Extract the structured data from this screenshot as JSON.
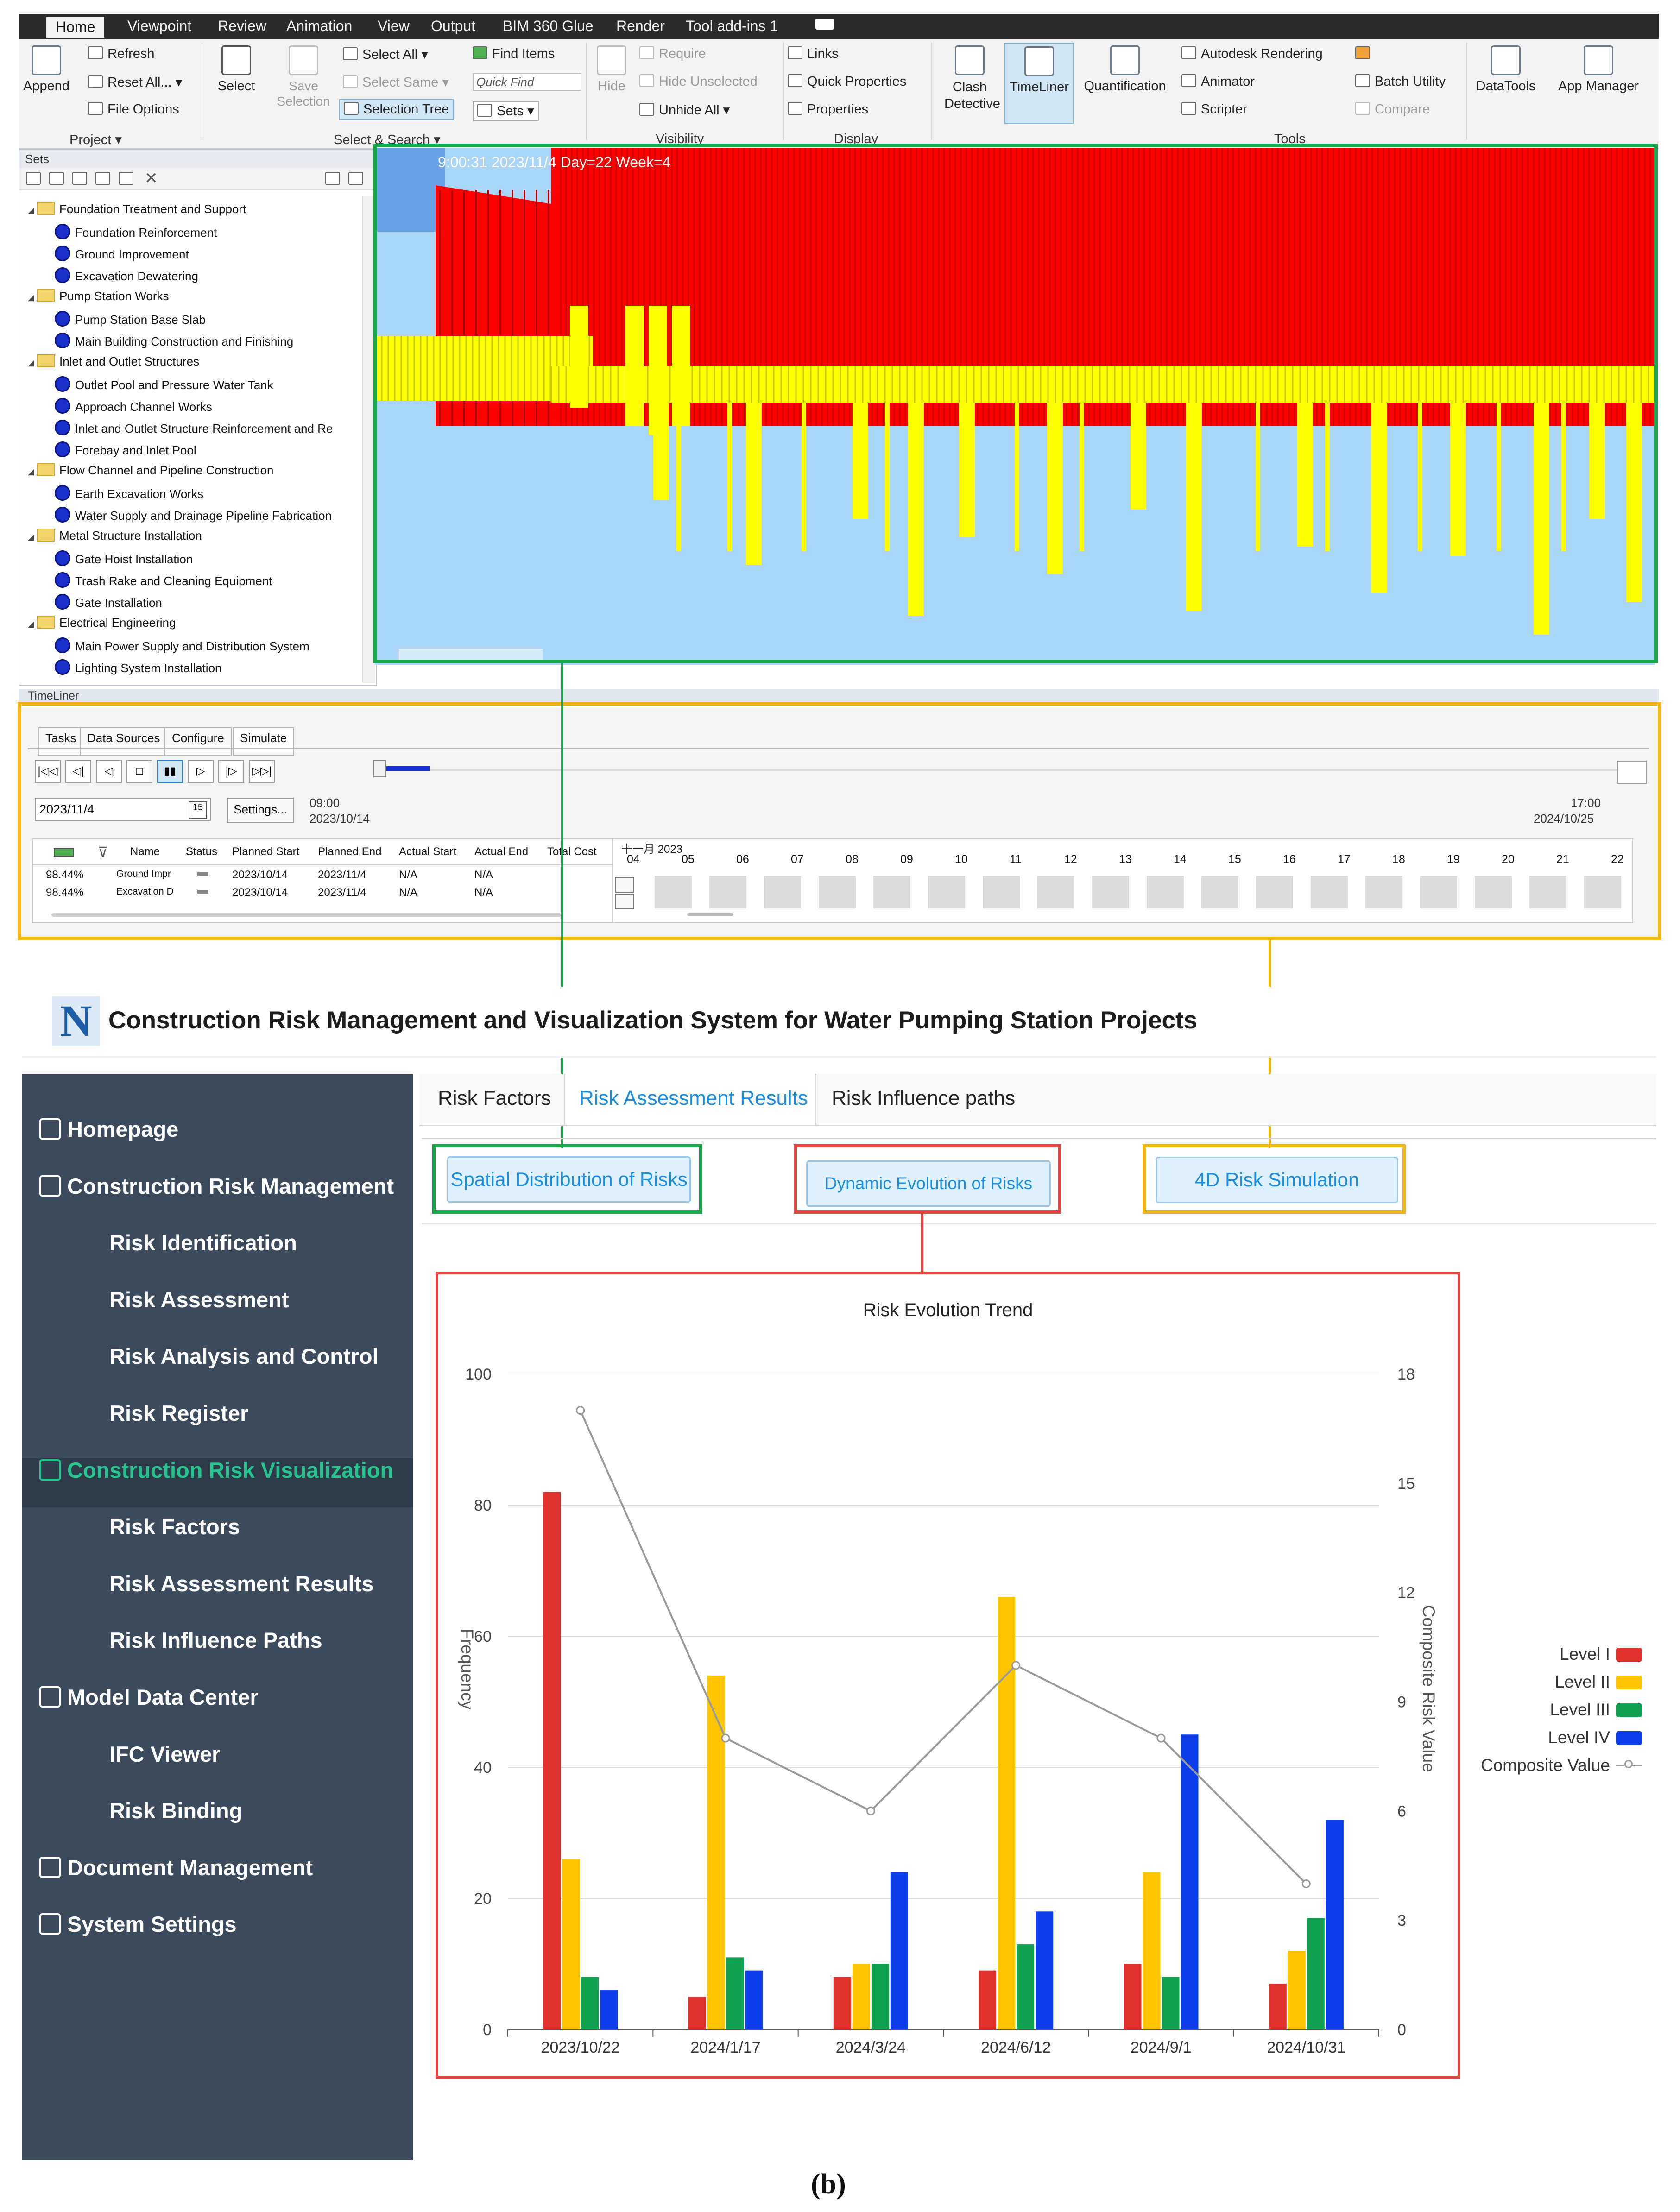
{
  "ribbon": {
    "tabs": [
      "Home",
      "Viewpoint",
      "Review",
      "Animation",
      "View",
      "Output",
      "BIM 360 Glue",
      "Render",
      "Tool add-ins 1"
    ],
    "active_tab": "Home",
    "project": {
      "append": "Append",
      "refresh": "Refresh",
      "reset_all": "Reset All...",
      "file_options": "File Options",
      "group_label": "Project"
    },
    "select": {
      "select": "Select",
      "save_selection": "Save\nSelection",
      "select_all": "Select All",
      "select_same": "Select Same",
      "selection_tree": "Selection Tree",
      "find_items": "Find Items",
      "quick_find": "Quick Find",
      "sets": "Sets",
      "group_label": "Select & Search"
    },
    "visibility": {
      "hide": "Hide",
      "require": "Require",
      "hide_unselected": "Hide Unselected",
      "unhide_all": "Unhide All",
      "group_label": "Visibility"
    },
    "display": {
      "links": "Links",
      "quick_properties": "Quick Properties",
      "properties": "Properties",
      "group_label": "Display"
    },
    "tools": {
      "clash_detective": "Clash Detective",
      "timeliner": "TimeLiner",
      "quantification": "Quantification",
      "autodesk_rendering": "Autodesk Rendering",
      "animator": "Animator",
      "scripter": "Scripter",
      "batch_utility": "Batch Utility",
      "compare": "Compare",
      "group_label": "Tools"
    },
    "datatools": "DataTools",
    "app_manager": "App Manager"
  },
  "sets_panel": {
    "title": "Sets",
    "tree": [
      {
        "label": "Foundation Treatment and Support",
        "level": 0
      },
      {
        "label": "Foundation Reinforcement",
        "level": 1
      },
      {
        "label": "Ground Improvement",
        "level": 1
      },
      {
        "label": "Excavation Dewatering",
        "level": 1
      },
      {
        "label": "Pump Station Works",
        "level": 0
      },
      {
        "label": "Pump Station Base Slab",
        "level": 1
      },
      {
        "label": "Main Building Construction and Finishing",
        "level": 1
      },
      {
        "label": "Inlet and Outlet Structures",
        "level": 0
      },
      {
        "label": "Outlet Pool and Pressure Water Tank",
        "level": 1
      },
      {
        "label": "Approach Channel Works",
        "level": 1
      },
      {
        "label": "Inlet and Outlet Structure Reinforcement and Re",
        "level": 1
      },
      {
        "label": "Forebay and Inlet Pool",
        "level": 1
      },
      {
        "label": "Flow Channel and Pipeline Construction",
        "level": 0
      },
      {
        "label": "Earth Excavation Works",
        "level": 1
      },
      {
        "label": "Water Supply and Drainage Pipeline Fabrication",
        "level": 1
      },
      {
        "label": "Metal Structure Installation",
        "level": 0
      },
      {
        "label": "Gate Hoist Installation",
        "level": 1
      },
      {
        "label": "Trash Rake and Cleaning Equipment",
        "level": 1
      },
      {
        "label": "Gate Installation",
        "level": 1
      },
      {
        "label": "Electrical Engineering",
        "level": 0
      },
      {
        "label": "Main Power Supply and Distribution System",
        "level": 1
      },
      {
        "label": "Lighting System Installation",
        "level": 1
      }
    ]
  },
  "viewport": {
    "overlay_text": "9:00:31  2023/11/4 Day=22 Week=4",
    "colors": {
      "risk_high": "#ff0000",
      "risk_mid": "#ffff00",
      "sky": "#a9d6f6"
    }
  },
  "timeliner": {
    "title": "TimeLiner",
    "tabs": [
      "Tasks",
      "Data Sources",
      "Configure",
      "Simulate"
    ],
    "active_tab": "Simulate",
    "date_value": "2023/11/4",
    "settings_button": "Settings...",
    "start_time": "09:00",
    "start_date": "2023/10/14",
    "end_time": "17:00",
    "end_date": "2024/10/25",
    "progress_fraction": 0.04,
    "columns": [
      "Name",
      "Status",
      "Planned Start",
      "Planned End",
      "Actual Start",
      "Actual End",
      "Total Cost"
    ],
    "rows": [
      {
        "pct": "98.44%",
        "name": "Ground Impr",
        "planned_start": "2023/10/14",
        "planned_end": "2023/11/4",
        "actual_start": "N/A",
        "actual_end": "N/A"
      },
      {
        "pct": "98.44%",
        "name": "Excavation D",
        "planned_start": "2023/10/14",
        "planned_end": "2023/11/4",
        "actual_start": "N/A",
        "actual_end": "N/A"
      }
    ],
    "gantt_month": "十一月 2023",
    "gantt_days": [
      "04",
      "05",
      "06",
      "07",
      "08",
      "09",
      "10",
      "11",
      "12",
      "13",
      "14",
      "15",
      "16",
      "17",
      "18",
      "19",
      "20",
      "21",
      "22"
    ]
  },
  "web_app": {
    "title": "Construction Risk Management and Visualization System for Water Pumping Station Projects",
    "logo_letter": "N",
    "nav": [
      {
        "label": "Homepage",
        "icon": "home-icon",
        "sub": false,
        "active": false
      },
      {
        "label": "Construction Risk Management",
        "icon": "network-icon",
        "sub": false,
        "active": false
      },
      {
        "label": "Risk Identification",
        "sub": true,
        "active": false
      },
      {
        "label": "Risk Assessment",
        "sub": true,
        "active": false
      },
      {
        "label": "Risk Analysis and Control",
        "sub": true,
        "active": false
      },
      {
        "label": "Risk Register",
        "sub": true,
        "active": false
      },
      {
        "label": "Construction Risk Visualization",
        "icon": "bar-chart-icon",
        "sub": false,
        "active": true
      },
      {
        "label": "Risk Factors",
        "sub": true,
        "active": false
      },
      {
        "label": "Risk Assessment Results",
        "sub": true,
        "active": false
      },
      {
        "label": "Risk Influence Paths",
        "sub": true,
        "active": false
      },
      {
        "label": "Model Data Center",
        "icon": "database-icon",
        "sub": false,
        "active": false
      },
      {
        "label": "IFC Viewer",
        "sub": true,
        "active": false
      },
      {
        "label": "Risk Binding",
        "sub": true,
        "active": false
      },
      {
        "label": "Document Management",
        "icon": "clipboard-icon",
        "sub": false,
        "active": false
      },
      {
        "label": "System Settings",
        "icon": "gears-icon",
        "sub": false,
        "active": false
      }
    ],
    "tabs": [
      "Risk Factors",
      "Risk Assessment Results",
      "Risk Influence paths"
    ],
    "active_tab": "Risk Assessment Results",
    "buttons": {
      "spatial": "Spatial Distribution of Risks",
      "dynamic": "Dynamic Evolution of Risks",
      "sim4d": "4D Risk Simulation"
    },
    "highlight_colors": {
      "green": "#1aa84b",
      "red": "#e0463f",
      "amber": "#f4b71b"
    }
  },
  "chart_data": {
    "type": "bar",
    "title": "Risk Evolution Trend",
    "categories": [
      "2023/10/22",
      "2024/1/17",
      "2024/3/24",
      "2024/6/12",
      "2024/9/1",
      "2024/10/31"
    ],
    "series": [
      {
        "name": "Level I",
        "values": [
          82,
          5,
          8,
          9,
          10,
          7
        ],
        "color": "#e0322c"
      },
      {
        "name": "Level II",
        "values": [
          26,
          54,
          10,
          66,
          24,
          12
        ],
        "color": "#ffc600"
      },
      {
        "name": "Level III",
        "values": [
          8,
          11,
          10,
          13,
          8,
          17
        ],
        "color": "#12a150"
      },
      {
        "name": "Level IV",
        "values": [
          6,
          9,
          24,
          18,
          45,
          32
        ],
        "color": "#0d3de8"
      }
    ],
    "line_series": {
      "name": "Composite Value",
      "values": [
        17,
        8,
        6,
        10,
        8,
        4
      ],
      "color": "#999999"
    },
    "ylabel": "Frequency",
    "ylabel_right": "Composite Risk Value",
    "ylim": [
      0,
      100
    ],
    "y_ticks": [
      0,
      20,
      40,
      60,
      80,
      100
    ],
    "ylim_right": [
      0,
      18
    ],
    "y_ticks_right": [
      0,
      3,
      6,
      9,
      12,
      15,
      18
    ],
    "grid": true,
    "legend_position": "right"
  },
  "caption": "(b)"
}
